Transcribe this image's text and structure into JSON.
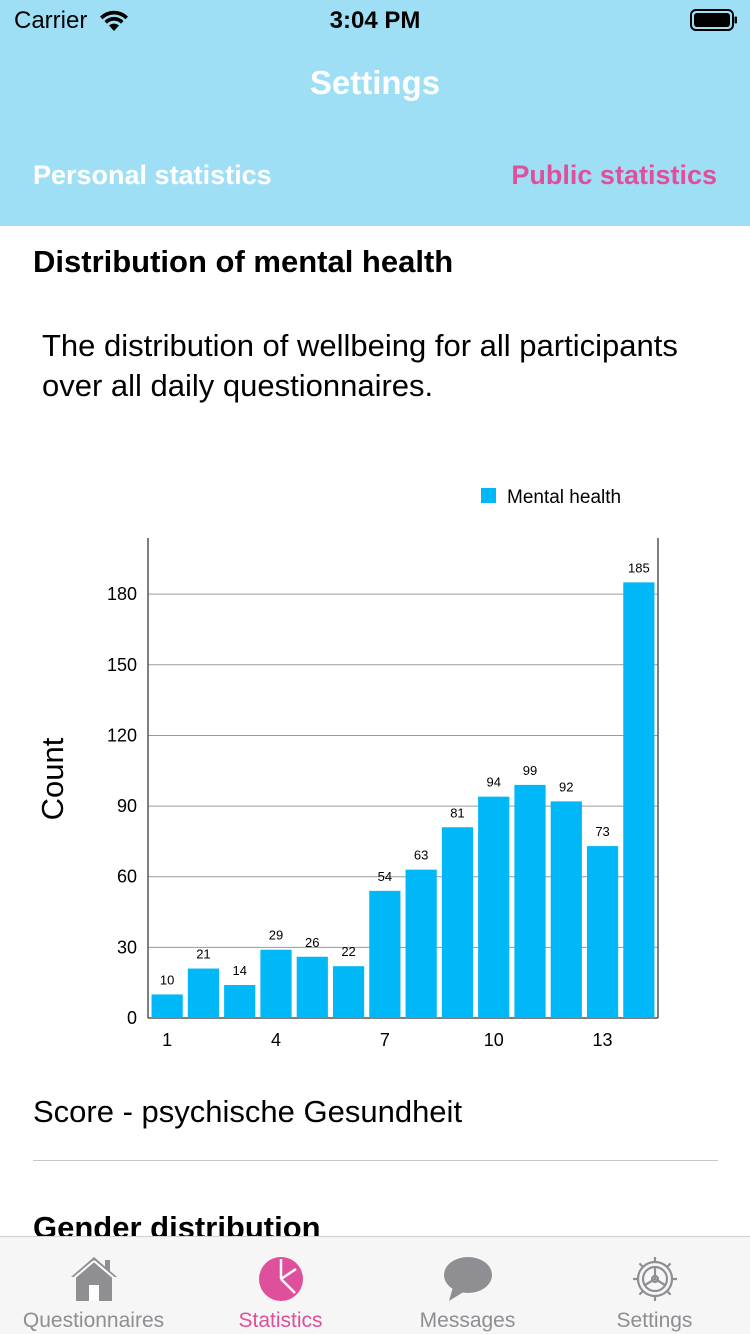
{
  "status_bar": {
    "carrier": "Carrier",
    "time": "3:04 PM"
  },
  "nav": {
    "title": "Settings"
  },
  "segments": {
    "personal": "Personal statistics",
    "public": "Public statistics"
  },
  "content": {
    "section_title": "Distribution of mental health",
    "description": "The distribution of wellbeing for all participants over all daily questionnaires.",
    "score_label": "Score - psychische Gesundheit",
    "next_section_title": "Gender distribution"
  },
  "chart_data": {
    "type": "bar",
    "categories": [
      "1",
      "2",
      "3",
      "4",
      "5",
      "6",
      "7",
      "8",
      "9",
      "10",
      "11",
      "12",
      "13",
      "14"
    ],
    "x_tick_labels": [
      "1",
      "4",
      "7",
      "10",
      "13"
    ],
    "series": [
      {
        "name": "Mental health",
        "values": [
          10,
          21,
          14,
          29,
          26,
          22,
          54,
          63,
          81,
          94,
          99,
          92,
          73,
          185
        ],
        "color": "#00b7f7"
      }
    ],
    "ylabel": "Count",
    "ylim": [
      0,
      203
    ],
    "yticks": [
      0,
      30,
      60,
      90,
      120,
      150,
      180
    ],
    "grid": true,
    "legend_position": "top-right"
  },
  "tabbar": {
    "items": [
      {
        "label": "Questionnaires",
        "icon": "house-icon"
      },
      {
        "label": "Statistics",
        "icon": "pie-chart-icon"
      },
      {
        "label": "Messages",
        "icon": "speech-bubble-icon"
      },
      {
        "label": "Settings",
        "icon": "gear-icon"
      }
    ],
    "active_index": 1
  },
  "colors": {
    "header": "#9fdff6",
    "accent": "#e04f9b",
    "bar": "#00b7f7",
    "tab_inactive": "#8e8e93"
  }
}
